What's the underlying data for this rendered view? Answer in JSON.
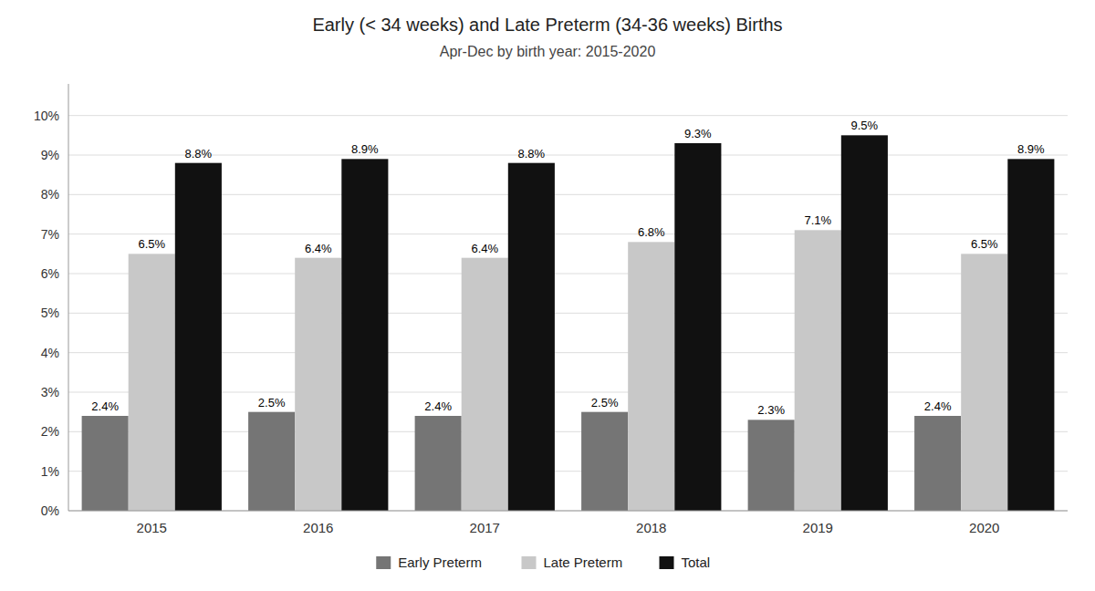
{
  "chart_data": {
    "type": "bar",
    "title": "Early (< 34 weeks) and Late Preterm (34-36 weeks) Births",
    "subtitle": "Apr-Dec by birth year: 2015-2020",
    "categories": [
      "2015",
      "2016",
      "2017",
      "2018",
      "2019",
      "2020"
    ],
    "series": [
      {
        "name": "Early Preterm",
        "color": "#757575",
        "values": [
          2.4,
          2.5,
          2.4,
          2.5,
          2.3,
          2.4
        ],
        "value_labels": [
          "2.4%",
          "2.5%",
          "2.4%",
          "2.5%",
          "2.3%",
          "2.4%"
        ]
      },
      {
        "name": "Late Preterm",
        "color": "#c8c8c8",
        "values": [
          6.5,
          6.4,
          6.4,
          6.8,
          7.1,
          6.5
        ],
        "value_labels": [
          "6.5%",
          "6.4%",
          "6.4%",
          "6.8%",
          "7.1%",
          "6.5%"
        ]
      },
      {
        "name": "Total",
        "color": "#111111",
        "values": [
          8.8,
          8.9,
          8.8,
          9.3,
          9.5,
          8.9
        ],
        "value_labels": [
          "8.8%",
          "8.9%",
          "8.8%",
          "9.3%",
          "9.5%",
          "8.9%"
        ]
      }
    ],
    "ylim": [
      0,
      10.8
    ],
    "yticks": [
      {
        "value": 0,
        "label": "0%"
      },
      {
        "value": 1,
        "label": "1%"
      },
      {
        "value": 2,
        "label": "2%"
      },
      {
        "value": 3,
        "label": "3%"
      },
      {
        "value": 4,
        "label": "4%"
      },
      {
        "value": 5,
        "label": "5%"
      },
      {
        "value": 6,
        "label": "6%"
      },
      {
        "value": 7,
        "label": "7%"
      },
      {
        "value": 8,
        "label": "8%"
      },
      {
        "value": 9,
        "label": "9%"
      },
      {
        "value": 10,
        "label": "10%"
      }
    ],
    "grid": true,
    "legend": "bottom",
    "data_labels": true
  }
}
